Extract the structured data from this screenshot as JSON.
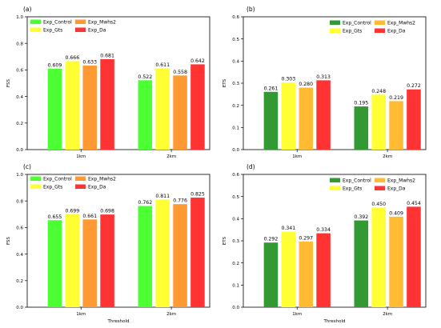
{
  "chart_data": [
    {
      "type": "bar",
      "panel_label": "(a)",
      "categories": [
        "1km",
        "2km"
      ],
      "xlabel": "",
      "ylabel": "FSS",
      "ylim": [
        0,
        1.0
      ],
      "yticks": [
        "0.0",
        "0.2",
        "0.4",
        "0.6",
        "0.8",
        "1.0"
      ],
      "legend_position": "top-left",
      "series": [
        {
          "name": "Exp_Control",
          "color": "#4cff32",
          "values": [
            0.609,
            0.522
          ],
          "labels": [
            "0.609",
            "0.522"
          ]
        },
        {
          "name": "Exp_Gts",
          "color": "#ffff33",
          "values": [
            0.666,
            0.611
          ],
          "labels": [
            "0.666",
            "0.611"
          ]
        },
        {
          "name": "Exp_Mwhs2",
          "color": "#ff9933",
          "values": [
            0.633,
            0.558
          ],
          "labels": [
            "0.633",
            "0.558"
          ]
        },
        {
          "name": "Exp_Da",
          "color": "#ff3333",
          "values": [
            0.681,
            0.642
          ],
          "labels": [
            "0.681",
            "0.642"
          ]
        }
      ]
    },
    {
      "type": "bar",
      "panel_label": "(b)",
      "categories": [
        "1km",
        "2km"
      ],
      "xlabel": "",
      "ylabel": "ETS",
      "ylim": [
        0,
        0.6
      ],
      "yticks": [
        "0.0",
        "0.1",
        "0.2",
        "0.3",
        "0.4",
        "0.5",
        "0.6"
      ],
      "legend_position": "top-right",
      "series": [
        {
          "name": "Exp_Control",
          "color": "#339933",
          "values": [
            0.261,
            0.195
          ],
          "labels": [
            "0.261",
            "0.195"
          ]
        },
        {
          "name": "Exp_Gts",
          "color": "#ffff33",
          "values": [
            0.303,
            0.248
          ],
          "labels": [
            "0.303",
            "0.248"
          ]
        },
        {
          "name": "Exp_Mwhs2",
          "color": "#ffbb33",
          "values": [
            0.28,
            0.219
          ],
          "labels": [
            "0.280",
            "0.219"
          ]
        },
        {
          "name": "Exp_Da",
          "color": "#ff3333",
          "values": [
            0.313,
            0.272
          ],
          "labels": [
            "0.313",
            "0.272"
          ]
        }
      ]
    },
    {
      "type": "bar",
      "panel_label": "(c)",
      "categories": [
        "1km",
        "2km"
      ],
      "xlabel": "Threshold",
      "ylabel": "FSS",
      "ylim": [
        0,
        1.0
      ],
      "yticks": [
        "0.0",
        "0.2",
        "0.4",
        "0.6",
        "0.8",
        "1.0"
      ],
      "legend_position": "top-left",
      "series": [
        {
          "name": "Exp_Control",
          "color": "#4cff32",
          "values": [
            0.655,
            0.762
          ],
          "labels": [
            "0.655",
            "0.762"
          ]
        },
        {
          "name": "Exp_Gts",
          "color": "#ffff33",
          "values": [
            0.699,
            0.811
          ],
          "labels": [
            "0.699",
            "0.811"
          ]
        },
        {
          "name": "Exp_Mwhs2",
          "color": "#ff9933",
          "values": [
            0.661,
            0.776
          ],
          "labels": [
            "0.661",
            "0.776"
          ]
        },
        {
          "name": "Exp_Da",
          "color": "#ff3333",
          "values": [
            0.698,
            0.825
          ],
          "labels": [
            "0.698",
            "0.825"
          ]
        }
      ]
    },
    {
      "type": "bar",
      "panel_label": "(d)",
      "categories": [
        "1km",
        "2km"
      ],
      "xlabel": "Threshold",
      "ylabel": "ETS",
      "ylim": [
        0,
        0.6
      ],
      "yticks": [
        "0.0",
        "0.1",
        "0.2",
        "0.3",
        "0.4",
        "0.5",
        "0.6"
      ],
      "legend_position": "top-right",
      "series": [
        {
          "name": "Exp_Control",
          "color": "#339933",
          "values": [
            0.292,
            0.392
          ],
          "labels": [
            "0.292",
            "0.392"
          ]
        },
        {
          "name": "Exp_Gts",
          "color": "#ffff33",
          "values": [
            0.341,
            0.45
          ],
          "labels": [
            "0.341",
            "0.450"
          ]
        },
        {
          "name": "Exp_Mwhs2",
          "color": "#ffbb33",
          "values": [
            0.297,
            0.409
          ],
          "labels": [
            "0.297",
            "0.409"
          ]
        },
        {
          "name": "Exp_Da",
          "color": "#ff3333",
          "values": [
            0.334,
            0.454
          ],
          "labels": [
            "0.334",
            "0.454"
          ]
        }
      ]
    }
  ]
}
